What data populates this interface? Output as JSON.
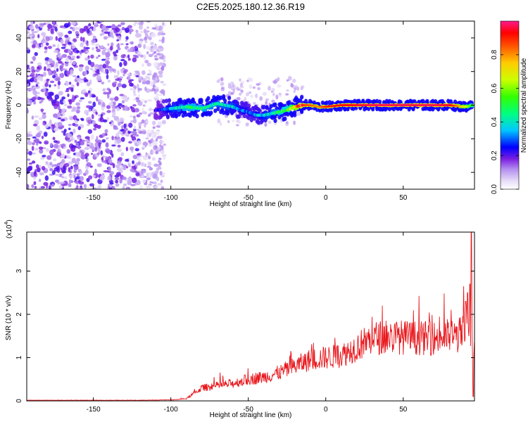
{
  "title": "C2E5.2025.180.12.36.R19",
  "chart_data": [
    {
      "type": "heatmap",
      "xlabel": "Height of straight line (km)",
      "ylabel": "Frequency (Hz)",
      "xlim": [
        -193,
        96
      ],
      "ylim": [
        -50,
        50
      ],
      "xticks": [
        -150,
        -100,
        -50,
        0,
        50
      ],
      "yticks": [
        -40,
        -20,
        0,
        20,
        40
      ],
      "colorbar": {
        "label": "Normalized spectral amplitude",
        "range": [
          0.0,
          1.0
        ],
        "ticks": [
          0.0,
          0.2,
          0.4,
          0.6,
          0.8
        ],
        "colors": [
          "#ffffff",
          "#d9c8f5",
          "#8a2be2",
          "#0000ff",
          "#00ffff",
          "#00ff00",
          "#ffff00",
          "#ff8800",
          "#ff0000",
          "#ff1493"
        ]
      },
      "noise_region_x": [
        -193,
        -108
      ],
      "ridge": {
        "x": [
          -110,
          -100,
          -90,
          -80,
          -70,
          -60,
          -55,
          -50,
          -45,
          -40,
          -35,
          -30,
          -25,
          -20,
          -15,
          -10,
          -5,
          0,
          10,
          20,
          30,
          40,
          50,
          60,
          70,
          80,
          90,
          95
        ],
        "freq": [
          -3,
          -2,
          -1,
          -2,
          1,
          -1,
          -3,
          -4,
          -6,
          -6,
          -5,
          -4,
          -3,
          -1,
          0,
          0,
          -1,
          -1,
          0,
          0,
          0,
          0,
          0,
          0,
          0,
          0,
          -1,
          0
        ],
        "amplitude": [
          0.2,
          0.35,
          0.45,
          0.45,
          0.4,
          0.38,
          0.32,
          0.3,
          0.32,
          0.35,
          0.4,
          0.45,
          0.5,
          0.75,
          0.9,
          0.85,
          0.8,
          0.9,
          0.92,
          0.95,
          0.97,
          0.97,
          0.97,
          0.97,
          0.97,
          0.95,
          0.7,
          0.5
        ]
      }
    },
    {
      "type": "line",
      "xlabel": "Height of straight line (km)",
      "ylabel": "SNR (10 * v/v)",
      "y_multiplier": "(x10",
      "y_multiplier_exp": "4",
      "xlim": [
        -193,
        96
      ],
      "ylim": [
        0,
        3.9
      ],
      "xticks": [
        -150,
        -100,
        -50,
        0,
        50
      ],
      "yticks": [
        0,
        1,
        2,
        3
      ],
      "color": "#e8161b",
      "envelope": {
        "x": [
          -193,
          -120,
          -100,
          -90,
          -80,
          -60,
          -50,
          -40,
          -30,
          -20,
          -10,
          0,
          10,
          20,
          30,
          40,
          50,
          60,
          70,
          80,
          85,
          90,
          92,
          94,
          96
        ],
        "y": [
          0.01,
          0.01,
          0.02,
          0.05,
          0.3,
          0.4,
          0.5,
          0.55,
          0.65,
          0.8,
          0.95,
          1.0,
          1.05,
          1.25,
          1.45,
          1.48,
          1.47,
          1.45,
          1.45,
          1.5,
          1.5,
          1.6,
          2.0,
          1.5,
          1.2
        ]
      },
      "spikes": [
        {
          "x": 94.0,
          "y": 3.9
        },
        {
          "x": 93.0,
          "y": 2.7
        },
        {
          "x": 91.5,
          "y": 2.5
        },
        {
          "x": 90.5,
          "y": 2.3
        },
        {
          "x": 95.2,
          "y": 0.1
        }
      ]
    }
  ]
}
